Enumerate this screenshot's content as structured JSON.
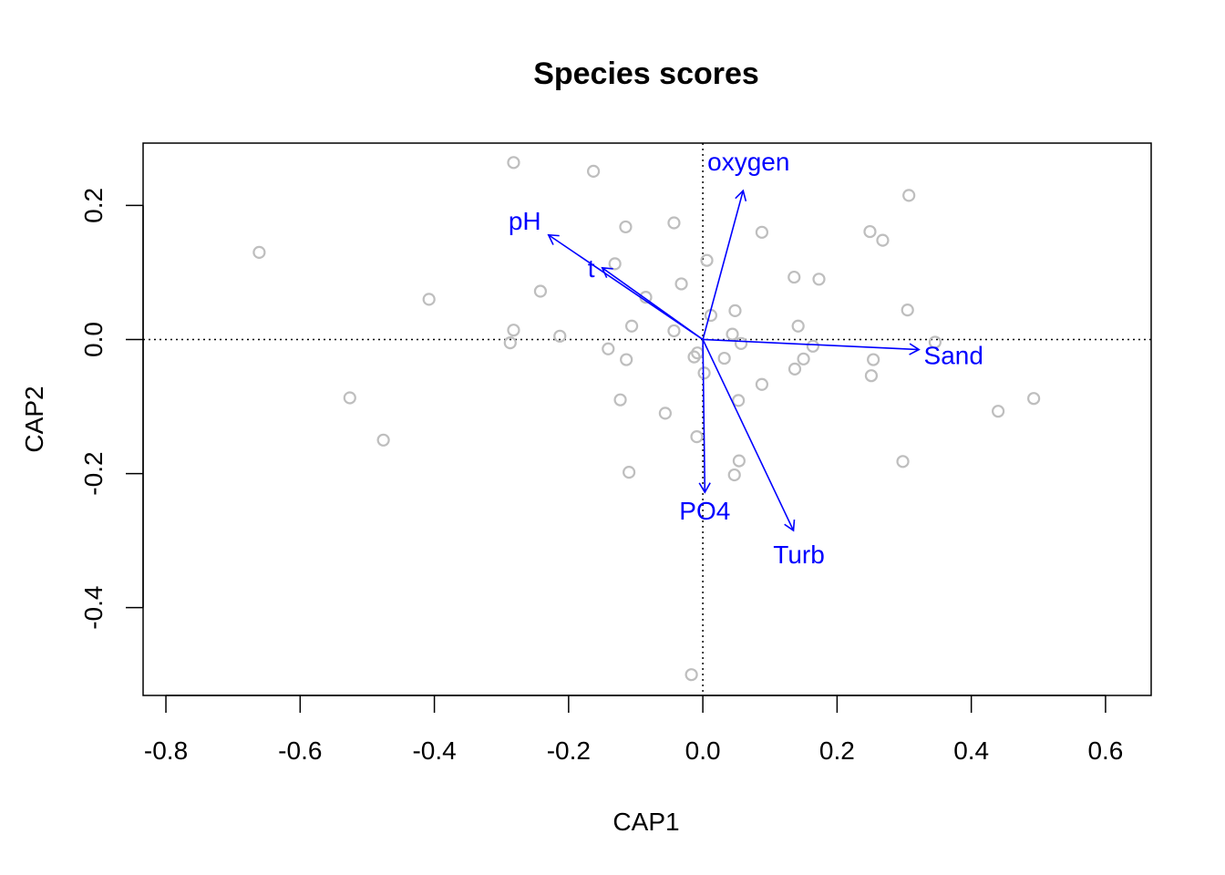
{
  "chart_data": {
    "type": "scatter",
    "title": "Species scores",
    "xlabel": "CAP1",
    "ylabel": "CAP2",
    "xlim": [
      -0.834,
      0.668
    ],
    "ylim": [
      -0.531,
      0.293
    ],
    "x_ticks": [
      -0.8,
      -0.6,
      -0.4,
      -0.2,
      0.0,
      0.2,
      0.4,
      0.6
    ],
    "x_tick_labels": [
      "-0.8",
      "-0.6",
      "-0.4",
      "-0.2",
      "0.0",
      "0.2",
      "0.4",
      "0.6"
    ],
    "y_ticks": [
      -0.4,
      -0.2,
      0.0,
      0.2
    ],
    "y_tick_labels": [
      "-0.4",
      "-0.2",
      "0.0",
      "0.2"
    ],
    "zero_lines": true,
    "point_color": "#bebebe",
    "arrow_color": "#0000ff",
    "points": [
      [
        -0.661,
        0.13
      ],
      [
        -0.282,
        0.264
      ],
      [
        -0.163,
        0.251
      ],
      [
        -0.115,
        0.168
      ],
      [
        -0.043,
        0.174
      ],
      [
        -0.408,
        0.06
      ],
      [
        -0.242,
        0.072
      ],
      [
        -0.131,
        0.113
      ],
      [
        -0.085,
        0.063
      ],
      [
        -0.032,
        0.083
      ],
      [
        0.006,
        0.118
      ],
      [
        -0.282,
        0.014
      ],
      [
        -0.287,
        -0.005
      ],
      [
        -0.213,
        0.005
      ],
      [
        -0.106,
        0.02
      ],
      [
        -0.141,
        -0.014
      ],
      [
        -0.114,
        -0.03
      ],
      [
        -0.043,
        0.013
      ],
      [
        -0.013,
        -0.026
      ],
      [
        -0.008,
        -0.02
      ],
      [
        0.012,
        0.036
      ],
      [
        0.048,
        0.043
      ],
      [
        0.044,
        0.008
      ],
      [
        0.057,
        -0.006
      ],
      [
        0.032,
        -0.028
      ],
      [
        0.002,
        -0.05
      ],
      [
        -0.526,
        -0.087
      ],
      [
        -0.476,
        -0.15
      ],
      [
        -0.123,
        -0.09
      ],
      [
        -0.056,
        -0.11
      ],
      [
        -0.009,
        -0.145
      ],
      [
        -0.11,
        -0.198
      ],
      [
        0.053,
        -0.091
      ],
      [
        0.088,
        -0.067
      ],
      [
        0.054,
        -0.181
      ],
      [
        0.047,
        -0.202
      ],
      [
        0.088,
        0.16
      ],
      [
        0.136,
        0.093
      ],
      [
        0.173,
        0.09
      ],
      [
        0.142,
        0.02
      ],
      [
        0.164,
        -0.01
      ],
      [
        0.15,
        -0.029
      ],
      [
        0.137,
        -0.044
      ],
      [
        0.249,
        0.161
      ],
      [
        0.268,
        0.148
      ],
      [
        0.307,
        0.215
      ],
      [
        0.305,
        0.044
      ],
      [
        0.254,
        -0.03
      ],
      [
        0.251,
        -0.054
      ],
      [
        0.298,
        -0.182
      ],
      [
        0.346,
        -0.004
      ],
      [
        0.44,
        -0.107
      ],
      [
        0.493,
        -0.088
      ],
      [
        -0.017,
        -0.5
      ]
    ],
    "arrows": [
      {
        "label": "oxygen",
        "x": 0.06,
        "y": 0.222
      },
      {
        "label": "pH",
        "x": -0.23,
        "y": 0.156
      },
      {
        "label": "t",
        "x": -0.15,
        "y": 0.107
      },
      {
        "label": "Sand",
        "x": 0.322,
        "y": -0.015
      },
      {
        "label": "PO4",
        "x": 0.003,
        "y": -0.228
      },
      {
        "label": "Turb",
        "x": 0.135,
        "y": -0.285
      }
    ]
  }
}
